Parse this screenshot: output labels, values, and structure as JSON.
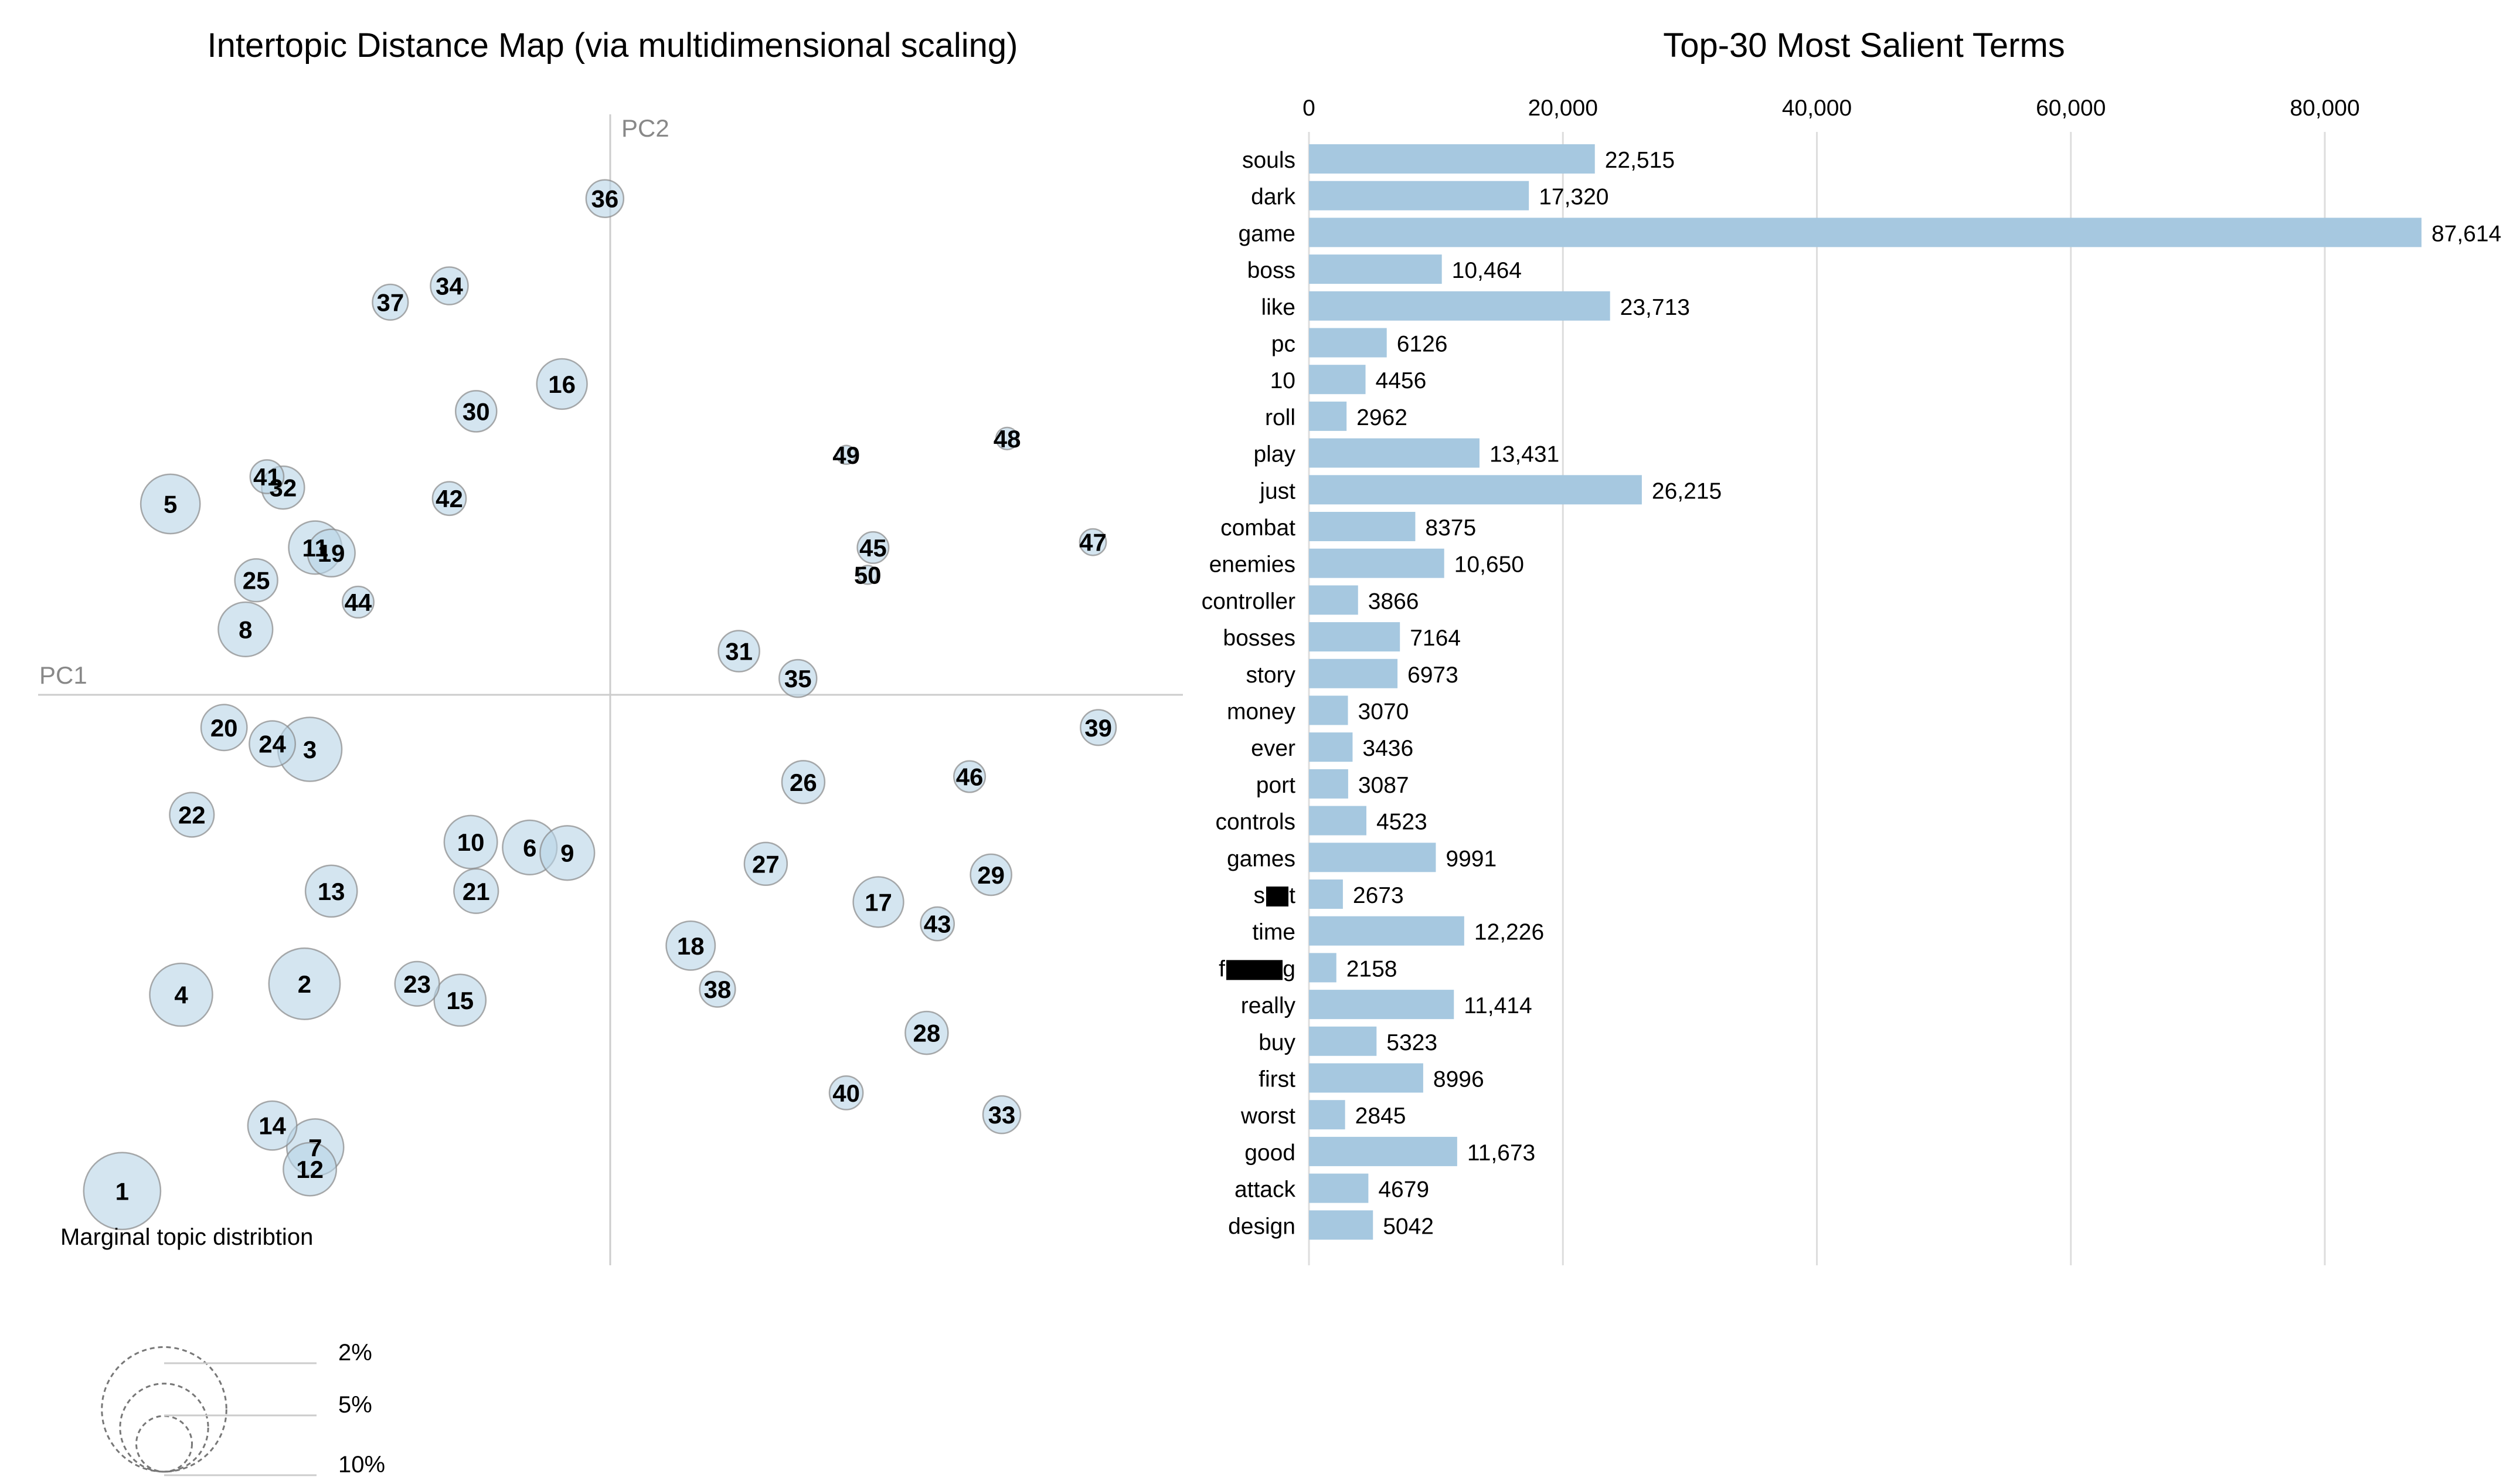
{
  "chart_data": [
    {
      "type": "scatter",
      "title": "Intertopic Distance Map (via multidimensional scaling)",
      "xlabel": "PC1",
      "ylabel": "PC2",
      "xlim": [
        -1,
        1
      ],
      "ylim": [
        -1,
        1
      ],
      "points_note": "topic centroids on PC1/PC2 (estimated, origin at axis crossing), size = marginal topic share %",
      "topics": [
        {
          "id": "1",
          "x": -0.91,
          "y": -0.91,
          "size": 4.2
        },
        {
          "id": "2",
          "x": -0.57,
          "y": -0.53,
          "size": 3.6
        },
        {
          "id": "3",
          "x": -0.56,
          "y": -0.1,
          "size": 2.9
        },
        {
          "id": "4",
          "x": -0.8,
          "y": -0.55,
          "size": 2.8
        },
        {
          "id": "5",
          "x": -0.82,
          "y": 0.35,
          "size": 2.5
        },
        {
          "id": "6",
          "x": -0.15,
          "y": -0.28,
          "size": 2.1
        },
        {
          "id": "7",
          "x": -0.55,
          "y": -0.83,
          "size": 2.3
        },
        {
          "id": "8",
          "x": -0.68,
          "y": 0.12,
          "size": 2.1
        },
        {
          "id": "9",
          "x": -0.08,
          "y": -0.29,
          "size": 2.1
        },
        {
          "id": "10",
          "x": -0.26,
          "y": -0.27,
          "size": 2.0
        },
        {
          "id": "11",
          "x": -0.55,
          "y": 0.27,
          "size": 2.0
        },
        {
          "id": "12",
          "x": -0.56,
          "y": -0.87,
          "size": 2.0
        },
        {
          "id": "13",
          "x": -0.52,
          "y": -0.36,
          "size": 1.9
        },
        {
          "id": "14",
          "x": -0.63,
          "y": -0.79,
          "size": 1.7
        },
        {
          "id": "15",
          "x": -0.28,
          "y": -0.56,
          "size": 1.9
        },
        {
          "id": "16",
          "x": -0.09,
          "y": 0.57,
          "size": 1.8
        },
        {
          "id": "17",
          "x": 0.5,
          "y": -0.38,
          "size": 1.8
        },
        {
          "id": "18",
          "x": 0.15,
          "y": -0.46,
          "size": 1.7
        },
        {
          "id": "19",
          "x": -0.52,
          "y": 0.26,
          "size": 1.6
        },
        {
          "id": "20",
          "x": -0.72,
          "y": -0.06,
          "size": 1.5
        },
        {
          "id": "21",
          "x": -0.25,
          "y": -0.36,
          "size": 1.4
        },
        {
          "id": "22",
          "x": -0.78,
          "y": -0.22,
          "size": 1.4
        },
        {
          "id": "23",
          "x": -0.36,
          "y": -0.53,
          "size": 1.4
        },
        {
          "id": "24",
          "x": -0.63,
          "y": -0.09,
          "size": 1.5
        },
        {
          "id": "25",
          "x": -0.66,
          "y": 0.21,
          "size": 1.3
        },
        {
          "id": "26",
          "x": 0.36,
          "y": -0.16,
          "size": 1.3
        },
        {
          "id": "27",
          "x": 0.29,
          "y": -0.31,
          "size": 1.3
        },
        {
          "id": "28",
          "x": 0.59,
          "y": -0.62,
          "size": 1.3
        },
        {
          "id": "29",
          "x": 0.71,
          "y": -0.33,
          "size": 1.2
        },
        {
          "id": "30",
          "x": -0.25,
          "y": 0.52,
          "size": 1.2
        },
        {
          "id": "31",
          "x": 0.24,
          "y": 0.08,
          "size": 1.2
        },
        {
          "id": "32",
          "x": -0.61,
          "y": 0.38,
          "size": 1.3
        },
        {
          "id": "33",
          "x": 0.73,
          "y": -0.77,
          "size": 1.0
        },
        {
          "id": "34",
          "x": -0.3,
          "y": 0.75,
          "size": 1.0
        },
        {
          "id": "35",
          "x": 0.35,
          "y": 0.03,
          "size": 1.0
        },
        {
          "id": "36",
          "x": -0.01,
          "y": 0.91,
          "size": 1.0
        },
        {
          "id": "37",
          "x": -0.41,
          "y": 0.72,
          "size": 0.9
        },
        {
          "id": "38",
          "x": 0.2,
          "y": -0.54,
          "size": 0.9
        },
        {
          "id": "39",
          "x": 0.91,
          "y": -0.06,
          "size": 0.9
        },
        {
          "id": "40",
          "x": 0.44,
          "y": -0.73,
          "size": 0.8
        },
        {
          "id": "41",
          "x": -0.64,
          "y": 0.4,
          "size": 0.8
        },
        {
          "id": "42",
          "x": -0.3,
          "y": 0.36,
          "size": 0.8
        },
        {
          "id": "43",
          "x": 0.61,
          "y": -0.42,
          "size": 0.8
        },
        {
          "id": "44",
          "x": -0.47,
          "y": 0.17,
          "size": 0.7
        },
        {
          "id": "45",
          "x": 0.49,
          "y": 0.27,
          "size": 0.7
        },
        {
          "id": "46",
          "x": 0.67,
          "y": -0.15,
          "size": 0.7
        },
        {
          "id": "47",
          "x": 0.9,
          "y": 0.28,
          "size": 0.5
        },
        {
          "id": "48",
          "x": 0.74,
          "y": 0.47,
          "size": 0.35
        },
        {
          "id": "49",
          "x": 0.44,
          "y": 0.44,
          "size": 0.25
        },
        {
          "id": "50",
          "x": 0.48,
          "y": 0.22,
          "size": 0.25
        }
      ],
      "legend": {
        "title": "Marginal topic distribtion",
        "labels": [
          "2%",
          "5%",
          "10%"
        ],
        "values": [
          2,
          5,
          10
        ]
      }
    },
    {
      "type": "bar",
      "orientation": "horizontal",
      "title": "Top-30 Most Salient Terms",
      "xlim": [
        0,
        90000
      ],
      "xticks": [
        0,
        20000,
        40000,
        60000,
        80000
      ],
      "xtick_labels": [
        "0",
        "20,000",
        "40,000",
        "60,000",
        "80,000"
      ],
      "categories": [
        "souls",
        "dark",
        "game",
        "boss",
        "like",
        "pc",
        "10",
        "roll",
        "play",
        "just",
        "combat",
        "enemies",
        "controller",
        "bosses",
        "story",
        "money",
        "ever",
        "port",
        "controls",
        "games",
        "s",
        "time",
        "f",
        "really",
        "buy",
        "first",
        "worst",
        "good",
        "attack",
        "design"
      ],
      "redacted": [
        false,
        false,
        false,
        false,
        false,
        false,
        false,
        false,
        false,
        false,
        false,
        false,
        false,
        false,
        false,
        false,
        false,
        false,
        false,
        false,
        true,
        false,
        true,
        false,
        false,
        false,
        false,
        false,
        false,
        false
      ],
      "values": [
        22515,
        17320,
        87614,
        10464,
        23713,
        6126,
        4456,
        2962,
        13431,
        26215,
        8375,
        10650,
        3866,
        7164,
        6973,
        3070,
        3436,
        3087,
        4523,
        9991,
        2673,
        12226,
        2158,
        11414,
        5323,
        8996,
        2845,
        11673,
        4679,
        5042
      ],
      "value_labels": [
        "22,515",
        "17,320",
        "87,614",
        "10,464",
        "23,713",
        "6126",
        "4456",
        "2962",
        "13,431",
        "26,215",
        "8375",
        "10,650",
        "3866",
        "7164",
        "6973",
        "3070",
        "3436",
        "3087",
        "4523",
        "9991",
        "2673",
        "12,226",
        "2158",
        "11,414",
        "5323",
        "8996",
        "2845",
        "11,673",
        "4679",
        "5042"
      ]
    }
  ],
  "colors": {
    "bubble_fill": "#b8d3e6",
    "bubble_stroke": "#888888",
    "bar": "#a6c8e0",
    "axis": "#cccccc",
    "grid": "#dddddd",
    "redaction": "#000000"
  }
}
